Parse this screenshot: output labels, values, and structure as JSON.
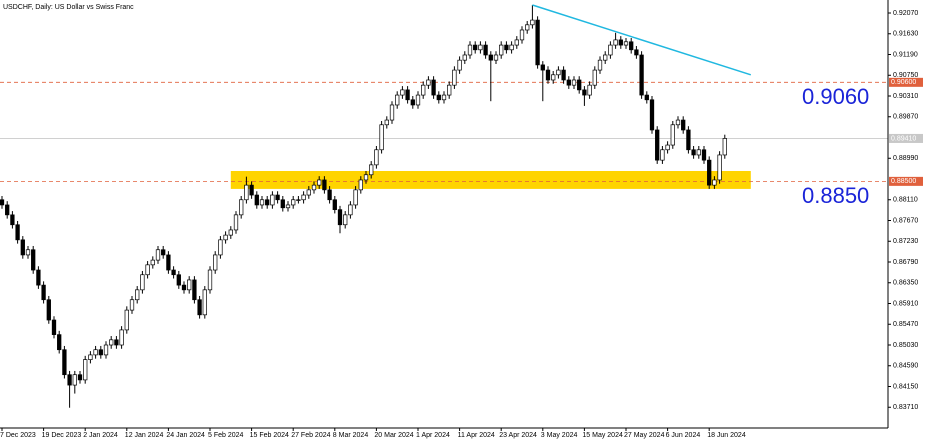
{
  "chart_data": {
    "type": "candlestick",
    "title": "USDCHF, Daily:  US Dollar vs Swiss Franc",
    "categories": [
      "7 Dec 2023",
      null,
      null,
      null,
      null,
      null,
      null,
      null,
      "19 Dec 2023",
      null,
      null,
      null,
      null,
      null,
      null,
      null,
      "2 Jan 2024",
      null,
      null,
      null,
      null,
      null,
      null,
      null,
      "12 Jan 2024",
      null,
      null,
      null,
      null,
      null,
      null,
      null,
      "24 Jan 2024",
      null,
      null,
      null,
      null,
      null,
      null,
      null,
      "5 Feb 2024",
      null,
      null,
      null,
      null,
      null,
      null,
      null,
      "15 Feb 2024",
      null,
      null,
      null,
      null,
      null,
      null,
      null,
      "27 Feb 2024",
      null,
      null,
      null,
      null,
      null,
      null,
      null,
      "8 Mar 2024",
      null,
      null,
      null,
      null,
      null,
      null,
      null,
      "20 Mar 2024",
      null,
      null,
      null,
      null,
      null,
      null,
      null,
      "1 Apr 2024",
      null,
      null,
      null,
      null,
      null,
      null,
      null,
      "11 Apr 2024",
      null,
      null,
      null,
      null,
      null,
      null,
      null,
      "23 Apr 2024",
      null,
      null,
      null,
      null,
      null,
      null,
      null,
      "3 May 2024",
      null,
      null,
      null,
      null,
      null,
      null,
      null,
      "15 May 2024",
      null,
      null,
      null,
      null,
      null,
      null,
      null,
      "27 May 2024",
      null,
      null,
      null,
      null,
      null,
      null,
      null,
      "6 Jun 2024",
      null,
      null,
      null,
      null,
      null,
      null,
      null,
      "18 Jun 2024",
      null,
      null,
      null
    ],
    "open": [
      0.8811,
      0.88,
      0.8779,
      0.8758,
      0.8726,
      0.8694,
      0.8705,
      0.8662,
      0.863,
      0.8599,
      0.8556,
      0.8525,
      0.8493,
      0.844,
      0.8418,
      0.844,
      0.8429,
      0.8472,
      0.8482,
      0.8493,
      0.8482,
      0.8503,
      0.8514,
      0.8503,
      0.8535,
      0.8577,
      0.8599,
      0.862,
      0.8652,
      0.8673,
      0.8683,
      0.8705,
      0.8694,
      0.8662,
      0.8652,
      0.863,
      0.862,
      0.8641,
      0.8599,
      0.8567,
      0.862,
      0.8662,
      0.8694,
      0.8726,
      0.8736,
      0.8747,
      0.8779,
      0.8811,
      0.8842,
      0.8821,
      0.88,
      0.8811,
      0.88,
      0.8821,
      0.8811,
      0.8794,
      0.88,
      0.8811,
      0.8811,
      0.8821,
      0.8832,
      0.8842,
      0.8853,
      0.8832,
      0.8811,
      0.879,
      0.8758,
      0.8779,
      0.88,
      0.8832,
      0.8853,
      0.8864,
      0.8885,
      0.8917,
      0.897,
      0.898,
      0.9012,
      0.9033,
      0.9044,
      0.9023,
      0.9012,
      0.9033,
      0.9054,
      0.9065,
      0.9033,
      0.9023,
      0.9033,
      0.9054,
      0.9086,
      0.9107,
      0.9118,
      0.9139,
      0.9129,
      0.9139,
      0.9118,
      0.9107,
      0.9118,
      0.9139,
      0.9129,
      0.9139,
      0.915,
      0.9171,
      0.9182,
      0.9192,
      0.9097,
      0.9086,
      0.9065,
      0.9076,
      0.9086,
      0.9065,
      0.9054,
      0.9065,
      0.9044,
      0.9033,
      0.9054,
      0.9086,
      0.9107,
      0.9118,
      0.9139,
      0.915,
      0.9139,
      0.9146,
      0.9129,
      0.9118,
      0.9033,
      0.9023,
      0.8959,
      0.8895,
      0.8917,
      0.8927,
      0.897,
      0.898,
      0.8959,
      0.8917,
      0.8906,
      0.8917,
      0.8895,
      0.8842,
      0.8853,
      0.8906
    ],
    "high": [
      0.8819,
      0.8808,
      0.8787,
      0.8766,
      0.8734,
      0.8713,
      0.8713,
      0.867,
      0.8638,
      0.8607,
      0.8564,
      0.8533,
      0.8501,
      0.8448,
      0.8448,
      0.8448,
      0.848,
      0.849,
      0.8501,
      0.8501,
      0.8511,
      0.8522,
      0.8522,
      0.8543,
      0.8585,
      0.8607,
      0.8628,
      0.866,
      0.8681,
      0.8691,
      0.8713,
      0.8713,
      0.8702,
      0.867,
      0.866,
      0.8638,
      0.8649,
      0.8649,
      0.8607,
      0.8628,
      0.867,
      0.8702,
      0.8734,
      0.8744,
      0.8755,
      0.8787,
      0.8819,
      0.886,
      0.885,
      0.8829,
      0.8819,
      0.8819,
      0.8829,
      0.8829,
      0.8819,
      0.8808,
      0.8819,
      0.8819,
      0.8829,
      0.884,
      0.885,
      0.8861,
      0.8861,
      0.884,
      0.8819,
      0.8798,
      0.8787,
      0.8808,
      0.884,
      0.8861,
      0.8872,
      0.8893,
      0.8925,
      0.8978,
      0.8988,
      0.902,
      0.9041,
      0.9052,
      0.9052,
      0.9031,
      0.9041,
      0.9062,
      0.9073,
      0.9073,
      0.9041,
      0.9041,
      0.9062,
      0.9094,
      0.9115,
      0.9126,
      0.9147,
      0.9147,
      0.9147,
      0.9147,
      0.9126,
      0.9126,
      0.9147,
      0.9147,
      0.9147,
      0.9158,
      0.9179,
      0.919,
      0.9224,
      0.92,
      0.9105,
      0.9094,
      0.9084,
      0.9094,
      0.9094,
      0.9073,
      0.9073,
      0.9073,
      0.9052,
      0.9062,
      0.9094,
      0.9115,
      0.9126,
      0.9147,
      0.9165,
      0.9158,
      0.9154,
      0.9154,
      0.9137,
      0.9126,
      0.9041,
      0.9031,
      0.8967,
      0.8925,
      0.8935,
      0.8978,
      0.8988,
      0.8988,
      0.8967,
      0.8925,
      0.8925,
      0.8925,
      0.8903,
      0.8861,
      0.8914,
      0.8949
    ],
    "low": [
      0.8792,
      0.8771,
      0.875,
      0.8718,
      0.8686,
      0.8686,
      0.8654,
      0.8622,
      0.8591,
      0.8548,
      0.8517,
      0.8485,
      0.8432,
      0.837,
      0.84,
      0.8421,
      0.8421,
      0.8464,
      0.8474,
      0.8474,
      0.8474,
      0.8495,
      0.8495,
      0.8495,
      0.8527,
      0.8569,
      0.8591,
      0.8612,
      0.8644,
      0.8665,
      0.8675,
      0.8686,
      0.8654,
      0.8644,
      0.8622,
      0.8612,
      0.8612,
      0.8591,
      0.8559,
      0.8559,
      0.8612,
      0.8654,
      0.8686,
      0.8718,
      0.8728,
      0.8739,
      0.8771,
      0.8803,
      0.8813,
      0.8792,
      0.8792,
      0.8792,
      0.8792,
      0.8803,
      0.8786,
      0.8786,
      0.8792,
      0.8803,
      0.8803,
      0.8813,
      0.8824,
      0.8834,
      0.8824,
      0.8803,
      0.8782,
      0.874,
      0.875,
      0.8771,
      0.8792,
      0.8824,
      0.8845,
      0.8856,
      0.8877,
      0.8909,
      0.8962,
      0.8972,
      0.9004,
      0.9025,
      0.9015,
      0.9004,
      0.9004,
      0.9025,
      0.9046,
      0.9025,
      0.9015,
      0.9015,
      0.9025,
      0.9046,
      0.9078,
      0.9099,
      0.911,
      0.9121,
      0.9121,
      0.911,
      0.902,
      0.9099,
      0.911,
      0.9121,
      0.9121,
      0.9131,
      0.9142,
      0.9163,
      0.9174,
      0.9089,
      0.902,
      0.9057,
      0.9057,
      0.9068,
      0.9057,
      0.9046,
      0.9046,
      0.9036,
      0.901,
      0.9025,
      0.9046,
      0.9078,
      0.9099,
      0.911,
      0.9131,
      0.9131,
      0.9131,
      0.9121,
      0.911,
      0.9025,
      0.9015,
      0.8951,
      0.8887,
      0.8887,
      0.8909,
      0.8919,
      0.8962,
      0.8951,
      0.8909,
      0.8898,
      0.8898,
      0.8887,
      0.8834,
      0.8834,
      0.8845,
      0.8898
    ],
    "close": [
      0.88,
      0.8779,
      0.8758,
      0.8726,
      0.8694,
      0.8705,
      0.8662,
      0.863,
      0.8599,
      0.8556,
      0.8525,
      0.8493,
      0.844,
      0.8418,
      0.844,
      0.8429,
      0.8472,
      0.8482,
      0.8493,
      0.8482,
      0.8503,
      0.8514,
      0.8503,
      0.8535,
      0.8577,
      0.8599,
      0.862,
      0.8652,
      0.8673,
      0.8683,
      0.8705,
      0.8694,
      0.8662,
      0.8652,
      0.863,
      0.862,
      0.8641,
      0.8599,
      0.8567,
      0.862,
      0.8662,
      0.8694,
      0.8726,
      0.8736,
      0.8747,
      0.8779,
      0.8811,
      0.8842,
      0.8821,
      0.88,
      0.8811,
      0.88,
      0.8821,
      0.8811,
      0.8794,
      0.88,
      0.8811,
      0.8811,
      0.8821,
      0.8832,
      0.8842,
      0.8853,
      0.8832,
      0.8811,
      0.879,
      0.8758,
      0.8779,
      0.88,
      0.8832,
      0.8853,
      0.8864,
      0.8885,
      0.8917,
      0.897,
      0.898,
      0.9012,
      0.9033,
      0.9044,
      0.9023,
      0.9012,
      0.9033,
      0.9054,
      0.9065,
      0.9033,
      0.9023,
      0.9033,
      0.9054,
      0.9086,
      0.9107,
      0.9118,
      0.9139,
      0.9129,
      0.9139,
      0.9118,
      0.9107,
      0.9118,
      0.9139,
      0.9129,
      0.9139,
      0.915,
      0.9171,
      0.9182,
      0.9192,
      0.9097,
      0.9086,
      0.9065,
      0.9076,
      0.9086,
      0.9065,
      0.9054,
      0.9065,
      0.9044,
      0.9033,
      0.9054,
      0.9086,
      0.9107,
      0.9118,
      0.9139,
      0.915,
      0.9139,
      0.9146,
      0.9129,
      0.9118,
      0.9033,
      0.9023,
      0.8959,
      0.8895,
      0.8917,
      0.8927,
      0.897,
      0.898,
      0.8959,
      0.8917,
      0.8906,
      0.8917,
      0.8895,
      0.8842,
      0.8853,
      0.8906,
      0.8941
    ],
    "up_color": "#ffffff",
    "down_color": "#000000",
    "ylim": [
      0.8327,
      0.92346
    ],
    "yticks": [
      {
        "value": 0.9207,
        "label": "0.92070"
      },
      {
        "value": 0.9163,
        "label": "0.91630"
      },
      {
        "value": 0.9119,
        "label": "0.91190"
      },
      {
        "value": 0.9075,
        "label": "0.90750"
      },
      {
        "value": 0.9031,
        "label": "0.90310"
      },
      {
        "value": 0.8987,
        "label": "0.89870"
      },
      {
        "value": 0.8899,
        "label": "0.88990"
      },
      {
        "value": 0.8811,
        "label": "0.88110"
      },
      {
        "value": 0.8767,
        "label": "0.87670"
      },
      {
        "value": 0.8723,
        "label": "0.87230"
      },
      {
        "value": 0.8679,
        "label": "0.86790"
      },
      {
        "value": 0.8635,
        "label": "0.86350"
      },
      {
        "value": 0.8591,
        "label": "0.85910"
      },
      {
        "value": 0.8547,
        "label": "0.85470"
      },
      {
        "value": 0.8503,
        "label": "0.85030"
      },
      {
        "value": 0.8459,
        "label": "0.84590"
      },
      {
        "value": 0.8415,
        "label": "0.84150"
      },
      {
        "value": 0.8371,
        "label": "0.83710"
      }
    ],
    "levels": [
      {
        "value": 0.906,
        "label": "0.90600",
        "note": "0.9060",
        "color": "#e0603c"
      },
      {
        "value": 0.885,
        "label": "0.88500",
        "note": "0.8850",
        "color": "#e0603c"
      }
    ],
    "current_price": {
      "value": 0.8941,
      "label": "0.89410"
    },
    "zone": {
      "ylim": [
        0.8834,
        0.8872
      ],
      "x": [
        44,
        144
      ],
      "color": "#ffd400"
    },
    "trendline": {
      "x": [
        102,
        144
      ],
      "values": [
        0.9224,
        0.9076
      ],
      "color": "#20b8e0"
    }
  }
}
